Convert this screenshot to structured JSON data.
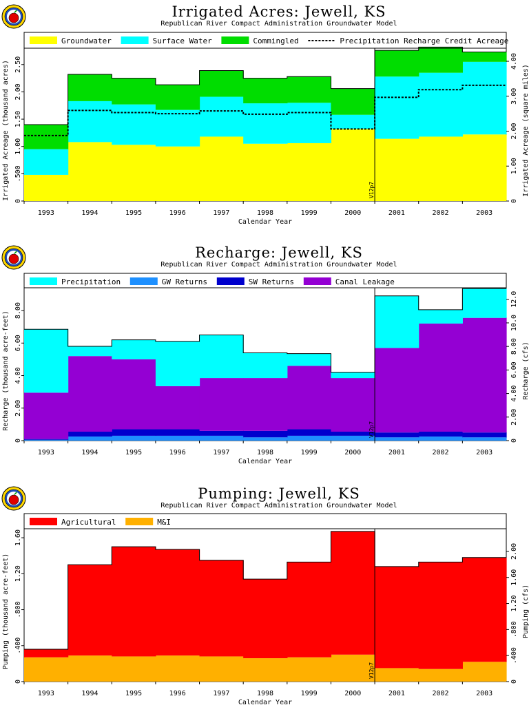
{
  "chart_data": [
    {
      "type": "area",
      "title": "Irrigated Acres: Jewell, KS",
      "subtitle": "Republican River Compact Administration Groundwater Model",
      "xlabel": "Calendar Year",
      "ylabel": "Irrigated Acreage (thousand acres)",
      "y2label": "Irrigated Acreage (square miles)",
      "categories": [
        "1993",
        "1994",
        "1995",
        "1996",
        "1997",
        "1998",
        "1999",
        "2000",
        "2001",
        "2002",
        "2003"
      ],
      "ylim": [
        0,
        2.8
      ],
      "yticks": [
        0,
        0.5,
        1.0,
        1.5,
        2.0,
        2.5
      ],
      "ytick_labels": [
        "0",
        ".500",
        "1.00",
        "1.50",
        "2.00",
        "2.50"
      ],
      "y2lim": [
        0,
        4.375
      ],
      "y2ticks": [
        0,
        1.0,
        2.0,
        3.0,
        4.0
      ],
      "y2tick_labels": [
        "0",
        "1.00",
        "2.00",
        "3.00",
        "4.00"
      ],
      "stacked": true,
      "series": [
        {
          "name": "Groundwater",
          "color": "#ffff00",
          "values": [
            0.48,
            1.08,
            1.03,
            1.0,
            1.18,
            1.05,
            1.06,
            1.32,
            1.14,
            1.18,
            1.22
          ]
        },
        {
          "name": "Surface Water",
          "color": "#00ffff",
          "values": [
            0.47,
            0.75,
            0.74,
            0.67,
            0.73,
            0.74,
            0.74,
            0.26,
            1.14,
            1.17,
            1.33
          ]
        },
        {
          "name": "Commingled",
          "color": "#00dd00",
          "values": [
            0.45,
            0.49,
            0.48,
            0.46,
            0.48,
            0.46,
            0.48,
            0.48,
            0.48,
            0.47,
            0.18
          ]
        }
      ],
      "lines": [
        {
          "name": "Precipitation Recharge Credit Acreage",
          "style": "dotted",
          "values": [
            1.2,
            1.66,
            1.62,
            1.6,
            1.65,
            1.59,
            1.62,
            1.32,
            1.9,
            2.04,
            2.12
          ]
        }
      ],
      "marker": {
        "label": "V12p7",
        "after_category": "2000"
      },
      "legend": "top"
    },
    {
      "type": "area",
      "title": "Recharge: Jewell, KS",
      "subtitle": "Republican River Compact Administration Groundwater Model",
      "xlabel": "Calendar Year",
      "ylabel": "Recharge (thousand acre-feet)",
      "y2label": "Recharge (cfs)",
      "categories": [
        "1993",
        "1994",
        "1995",
        "1996",
        "1997",
        "1998",
        "1999",
        "2000",
        "2001",
        "2002",
        "2003"
      ],
      "ylim": [
        0,
        9.4
      ],
      "yticks": [
        0,
        2.0,
        4.0,
        6.0,
        8.0
      ],
      "ytick_labels": [
        "0",
        "2.00",
        "4.00",
        "6.00",
        "8.00"
      ],
      "y2lim": [
        0,
        12.98
      ],
      "y2ticks": [
        0,
        2.0,
        4.0,
        6.0,
        8.0,
        10.0,
        12.0
      ],
      "y2tick_labels": [
        "0",
        "2.00",
        "4.00",
        "6.00",
        "8.00",
        "10.0",
        "12.0"
      ],
      "stacked": true,
      "series": [
        {
          "name": "GW Returns",
          "color": "#1e90ff",
          "values": [
            0.05,
            0.25,
            0.3,
            0.3,
            0.3,
            0.2,
            0.3,
            0.3,
            0.2,
            0.25,
            0.2
          ]
        },
        {
          "name": "SW Returns",
          "color": "#0000cd",
          "values": [
            0.05,
            0.3,
            0.4,
            0.4,
            0.3,
            0.4,
            0.4,
            0.25,
            0.3,
            0.3,
            0.3
          ]
        },
        {
          "name": "Canal Leakage",
          "color": "#9400d3",
          "values": [
            2.85,
            4.65,
            4.3,
            2.65,
            3.25,
            3.25,
            3.9,
            3.3,
            5.2,
            6.65,
            7.05
          ]
        },
        {
          "name": "Precipitation",
          "color": "#00ffff",
          "values": [
            3.9,
            0.6,
            1.2,
            2.75,
            2.65,
            1.55,
            0.75,
            0.35,
            3.2,
            0.85,
            1.8
          ]
        }
      ],
      "legend_order": [
        "Precipitation",
        "GW Returns",
        "SW Returns",
        "Canal Leakage"
      ],
      "marker": {
        "label": "V12p7",
        "after_category": "2000"
      },
      "legend": "top"
    },
    {
      "type": "area",
      "title": "Pumping: Jewell, KS",
      "subtitle": "Republican River Compact Administration Groundwater Model",
      "xlabel": "Calendar Year",
      "ylabel": "Pumping (thousand acre-feet)",
      "y2label": "Pumping (cfs)",
      "categories": [
        "1993",
        "1994",
        "1995",
        "1996",
        "1997",
        "1998",
        "1999",
        "2000",
        "2001",
        "2002",
        "2003"
      ],
      "ylim": [
        0,
        1.7
      ],
      "yticks": [
        0,
        0.4,
        0.8,
        1.2,
        1.6
      ],
      "ytick_labels": [
        "0",
        ".400",
        ".800",
        "1.20",
        "1.60"
      ],
      "y2lim": [
        0,
        2.348
      ],
      "y2ticks": [
        0,
        0.4,
        0.8,
        1.2,
        1.6,
        2.0
      ],
      "y2tick_labels": [
        "0",
        ".400",
        ".800",
        "1.20",
        "1.60",
        "2.00"
      ],
      "stacked": true,
      "series": [
        {
          "name": "M&I",
          "color": "#ffb000",
          "values": [
            0.27,
            0.29,
            0.28,
            0.29,
            0.28,
            0.26,
            0.27,
            0.3,
            0.15,
            0.14,
            0.22
          ]
        },
        {
          "name": "Agricultural",
          "color": "#ff0000",
          "values": [
            0.09,
            1.01,
            1.22,
            1.18,
            1.07,
            0.88,
            1.06,
            1.37,
            1.13,
            1.19,
            1.16
          ]
        }
      ],
      "legend_order": [
        "Agricultural",
        "M&I"
      ],
      "marker": {
        "label": "V12p7",
        "after_category": "2000"
      },
      "legend": "top"
    }
  ]
}
